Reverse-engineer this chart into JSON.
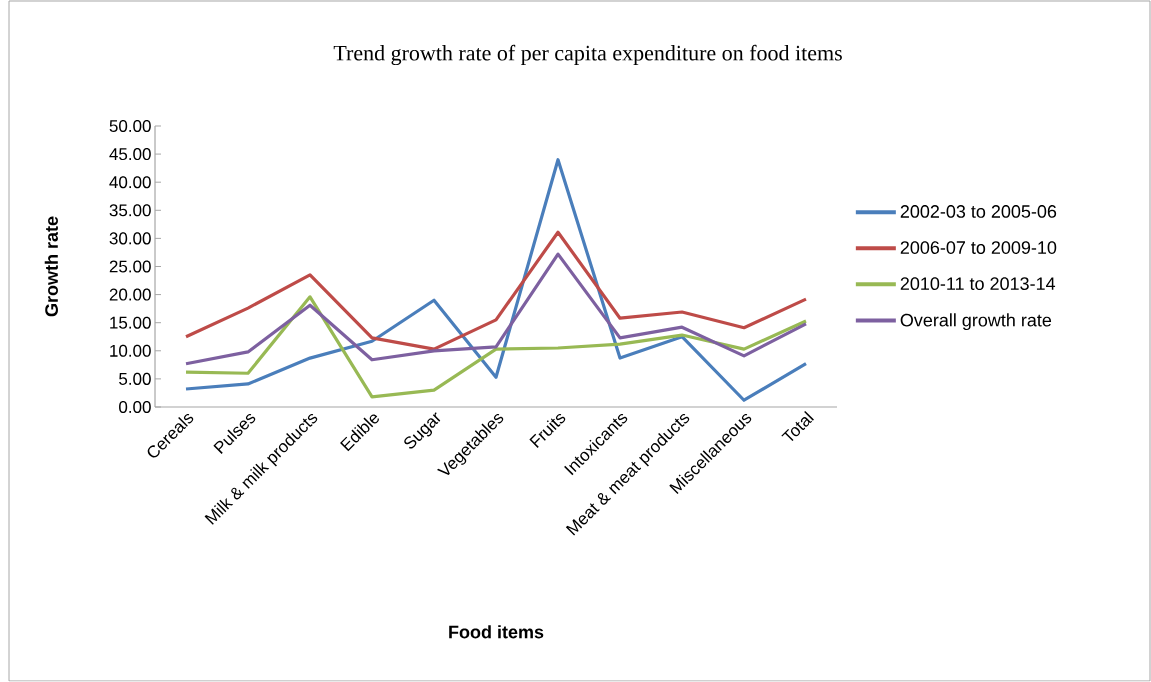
{
  "chart_data": {
    "type": "line",
    "title": "Trend growth rate of per capita expenditure on food items",
    "xlabel": "Food items",
    "ylabel": "Growth rate",
    "categories": [
      "Cereals",
      "Pulses",
      "Milk & milk products",
      "Edible",
      "Sugar",
      "Vegetables",
      "Fruits",
      "Intoxicants",
      "Meat & meat products",
      "Miscellaneous",
      "Total"
    ],
    "series": [
      {
        "name": "2002-03 to 2005-06",
        "color": "#4a7ebb",
        "values": [
          3.2,
          4.1,
          8.7,
          11.7,
          19.0,
          5.3,
          44.0,
          8.7,
          12.5,
          1.2,
          7.7
        ]
      },
      {
        "name": "2006-07 to 2009-10",
        "color": "#be4b48",
        "values": [
          12.5,
          17.6,
          23.5,
          12.3,
          10.3,
          15.5,
          31.1,
          15.8,
          16.9,
          14.1,
          19.2
        ]
      },
      {
        "name": "2010-11 to 2013-14",
        "color": "#98b954",
        "values": [
          6.2,
          6.0,
          19.6,
          1.8,
          3.0,
          10.3,
          10.5,
          11.2,
          12.8,
          10.3,
          15.3
        ]
      },
      {
        "name": "Overall growth rate",
        "color": "#7d60a0",
        "values": [
          7.7,
          9.8,
          18.1,
          8.4,
          10.0,
          10.7,
          27.2,
          12.3,
          14.2,
          9.1,
          14.8
        ]
      }
    ],
    "ylim": [
      0,
      50
    ],
    "yticks": [
      {
        "value": 0,
        "label": "0.00"
      },
      {
        "value": 5,
        "label": "5.00"
      },
      {
        "value": 10,
        "label": "10.00"
      },
      {
        "value": 15,
        "label": "15.00"
      },
      {
        "value": 20,
        "label": "20.00"
      },
      {
        "value": 25,
        "label": "25.00"
      },
      {
        "value": 30,
        "label": "30.00"
      },
      {
        "value": 35,
        "label": "35.00"
      },
      {
        "value": 40,
        "label": "40.00"
      },
      {
        "value": 45,
        "label": "45.00"
      },
      {
        "value": 50,
        "label": "50.00"
      }
    ],
    "grid": false,
    "legend": "right",
    "marker": "none",
    "line_style": "solid"
  }
}
